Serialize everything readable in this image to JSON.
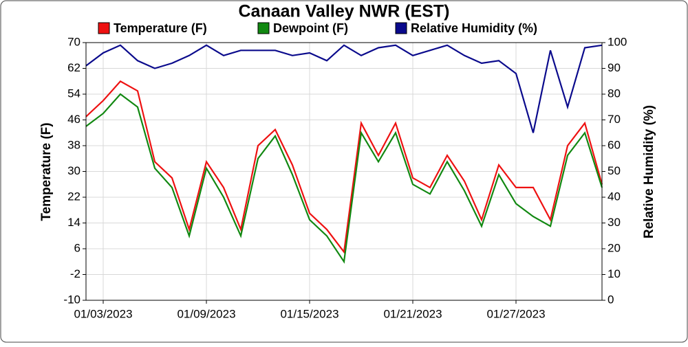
{
  "chart_data": {
    "type": "line",
    "title": "Canaan Valley NWR (EST)",
    "y_label": "Temperature (F)",
    "y2_label": "Relative Humidity (%)",
    "x": [
      "01/02/2023",
      "01/03/2023",
      "01/04/2023",
      "01/05/2023",
      "01/06/2023",
      "01/07/2023",
      "01/08/2023",
      "01/09/2023",
      "01/10/2023",
      "01/11/2023",
      "01/12/2023",
      "01/13/2023",
      "01/14/2023",
      "01/15/2023",
      "01/16/2023",
      "01/17/2023",
      "01/18/2023",
      "01/19/2023",
      "01/20/2023",
      "01/21/2023",
      "01/22/2023",
      "01/23/2023",
      "01/24/2023",
      "01/25/2023",
      "01/26/2023",
      "01/27/2023",
      "01/28/2023",
      "01/29/2023",
      "01/30/2023",
      "01/31/2023",
      "02/01/2023"
    ],
    "series": [
      {
        "name": "Temperature (F)",
        "color": "#ee1111",
        "values": [
          47,
          52,
          58,
          55,
          33,
          28,
          12,
          33,
          25,
          12,
          38,
          43,
          32,
          17,
          12,
          5,
          45,
          35,
          45,
          28,
          25,
          35,
          27,
          15,
          32,
          25,
          25,
          15,
          38,
          45,
          26
        ]
      },
      {
        "name": "Dewpoint (F)",
        "color": "#118811",
        "values": [
          44,
          48,
          54,
          50,
          31,
          25,
          10,
          31,
          22,
          10,
          34,
          41,
          29,
          15,
          10,
          2,
          42,
          33,
          42,
          26,
          23,
          33,
          24,
          13,
          29,
          20,
          16,
          13,
          35,
          42,
          25
        ]
      },
      {
        "name": "Relative Humidity (%)",
        "color": "#0a0a8c",
        "axis": "y2",
        "values": [
          91,
          96,
          99,
          93,
          90,
          92,
          95,
          99,
          95,
          97,
          97,
          97,
          95,
          96,
          93,
          99,
          95,
          98,
          99,
          95,
          97,
          99,
          95,
          92,
          93,
          88,
          65,
          97,
          75,
          98,
          99
        ]
      }
    ],
    "xlim": [
      "01/02/2023",
      "02/01/2023"
    ],
    "xticks": [
      "01/03/2023",
      "01/09/2023",
      "01/15/2023",
      "01/21/2023",
      "01/27/2023"
    ],
    "ylim": [
      -10,
      70
    ],
    "yticks": [
      -10,
      -2,
      6,
      14,
      22,
      30,
      38,
      46,
      54,
      62,
      70
    ],
    "y2lim": [
      0,
      100
    ],
    "y2ticks": [
      0,
      10,
      20,
      30,
      40,
      50,
      60,
      70,
      80,
      90,
      100
    ],
    "grid": true,
    "legend": "top"
  }
}
